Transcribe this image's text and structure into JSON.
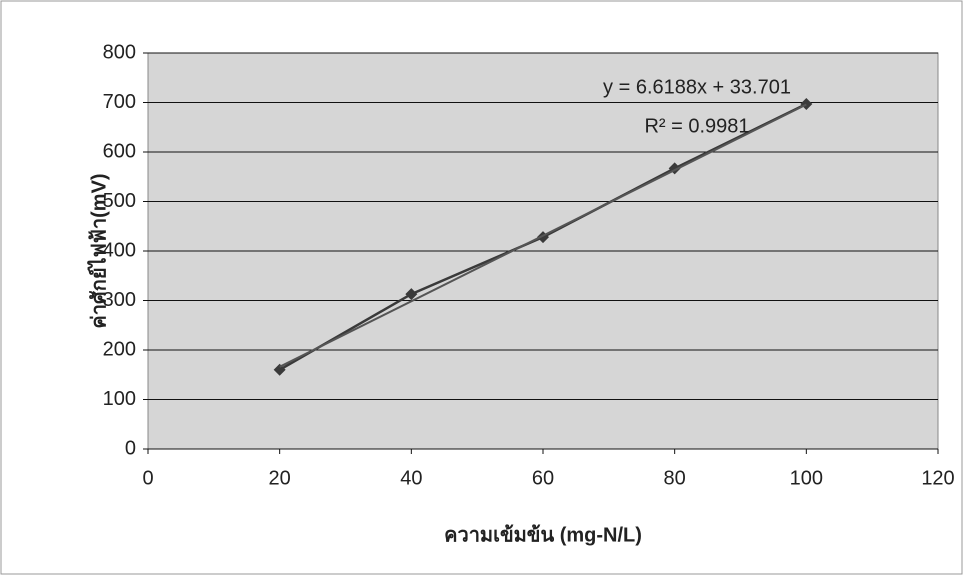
{
  "chart_data": {
    "type": "scatter",
    "x_label": "ความเข้มข้น (mg-N/L)",
    "y_label": "ค่าศักย์ไฟฟ้า(mV)",
    "series": [
      {
        "color": "#3a3a3a",
        "marker": "diamond",
        "line": true,
        "x": [
          20,
          40,
          60,
          80,
          100
        ],
        "values": [
          160,
          313,
          428,
          567,
          697
        ]
      }
    ],
    "trendline": {
      "color": "#555555",
      "x": [
        20,
        100
      ],
      "values": [
        166,
        696
      ]
    },
    "annotations": [
      "y = 6.6188x + 33.701",
      "R² = 0.9981"
    ],
    "xlim": [
      0,
      120
    ],
    "xticks": [
      0,
      20,
      40,
      60,
      80,
      100,
      120
    ],
    "ylim": [
      0,
      800
    ],
    "yticks": [
      0,
      100,
      200,
      300,
      400,
      500,
      600,
      700,
      800
    ],
    "grid": true,
    "plot_background": "#d6d6d6"
  }
}
